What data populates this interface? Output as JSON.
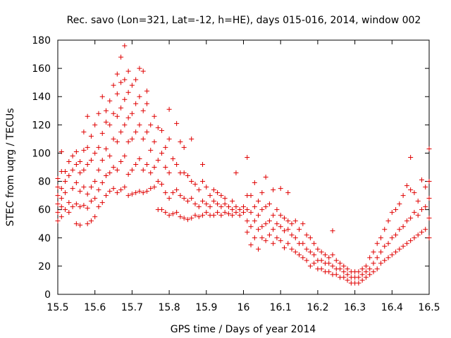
{
  "chart_data": {
    "type": "scatter",
    "title": "Rec. savo (Lon=321, Lat=-12, h=HE), days 015-016, 2014, window 002",
    "xlabel": "GPS time / Days of year 2014",
    "ylabel": "STEC from uqrg / TECUs",
    "xlim": [
      15.5,
      16.5
    ],
    "ylim": [
      0,
      180
    ],
    "xticks": [
      "15.5",
      "15.6",
      "15.7",
      "15.8",
      "15.9",
      "16",
      "16.1",
      "16.2",
      "16.3",
      "16.4",
      "16.5"
    ],
    "yticks": [
      "0",
      "20",
      "40",
      "60",
      "80",
      "100",
      "120",
      "140",
      "160",
      "180"
    ],
    "grid": false,
    "legend": "none",
    "marker": "plus",
    "color": "#e00000",
    "points": [
      [
        15.5,
        52
      ],
      [
        15.5,
        58
      ],
      [
        15.5,
        64
      ],
      [
        15.5,
        70
      ],
      [
        15.5,
        76
      ],
      [
        15.5,
        82
      ],
      [
        15.51,
        55
      ],
      [
        15.51,
        62
      ],
      [
        15.51,
        68
      ],
      [
        15.51,
        75
      ],
      [
        15.51,
        87
      ],
      [
        15.51,
        101
      ],
      [
        15.52,
        60
      ],
      [
        15.52,
        72
      ],
      [
        15.52,
        80
      ],
      [
        15.52,
        87
      ],
      [
        15.53,
        58
      ],
      [
        15.53,
        65
      ],
      [
        15.53,
        84
      ],
      [
        15.53,
        94
      ],
      [
        15.54,
        62
      ],
      [
        15.54,
        75
      ],
      [
        15.54,
        88
      ],
      [
        15.54,
        98
      ],
      [
        15.55,
        50
      ],
      [
        15.55,
        64
      ],
      [
        15.55,
        79
      ],
      [
        15.55,
        92
      ],
      [
        15.55,
        101
      ],
      [
        15.56,
        49
      ],
      [
        15.56,
        62
      ],
      [
        15.56,
        73
      ],
      [
        15.56,
        86
      ],
      [
        15.56,
        94
      ],
      [
        15.57,
        63
      ],
      [
        15.57,
        76
      ],
      [
        15.57,
        88
      ],
      [
        15.57,
        102
      ],
      [
        15.57,
        115
      ],
      [
        15.58,
        50
      ],
      [
        15.58,
        61
      ],
      [
        15.58,
        71
      ],
      [
        15.58,
        92
      ],
      [
        15.58,
        104
      ],
      [
        15.58,
        126
      ],
      [
        15.59,
        52
      ],
      [
        15.59,
        66
      ],
      [
        15.59,
        76
      ],
      [
        15.59,
        95
      ],
      [
        15.59,
        112
      ],
      [
        15.6,
        55
      ],
      [
        15.6,
        68
      ],
      [
        15.6,
        80
      ],
      [
        15.6,
        100
      ],
      [
        15.6,
        120
      ],
      [
        15.61,
        62
      ],
      [
        15.61,
        74
      ],
      [
        15.61,
        88
      ],
      [
        15.61,
        104
      ],
      [
        15.61,
        128
      ],
      [
        15.62,
        65
      ],
      [
        15.62,
        79
      ],
      [
        15.62,
        95
      ],
      [
        15.62,
        114
      ],
      [
        15.62,
        140
      ],
      [
        15.63,
        70
      ],
      [
        15.63,
        84
      ],
      [
        15.63,
        103
      ],
      [
        15.63,
        122
      ],
      [
        15.63,
        130
      ],
      [
        15.64,
        73
      ],
      [
        15.64,
        86
      ],
      [
        15.64,
        98
      ],
      [
        15.64,
        120
      ],
      [
        15.64,
        137
      ],
      [
        15.65,
        75
      ],
      [
        15.65,
        90
      ],
      [
        15.65,
        110
      ],
      [
        15.65,
        128
      ],
      [
        15.65,
        148
      ],
      [
        15.66,
        72
      ],
      [
        15.66,
        88
      ],
      [
        15.66,
        108
      ],
      [
        15.66,
        126
      ],
      [
        15.66,
        142
      ],
      [
        15.66,
        156
      ],
      [
        15.67,
        74
      ],
      [
        15.67,
        94
      ],
      [
        15.67,
        115
      ],
      [
        15.67,
        132
      ],
      [
        15.67,
        150
      ],
      [
        15.67,
        168
      ],
      [
        15.68,
        76
      ],
      [
        15.68,
        98
      ],
      [
        15.68,
        120
      ],
      [
        15.68,
        138
      ],
      [
        15.68,
        152
      ],
      [
        15.68,
        176
      ],
      [
        15.69,
        70
      ],
      [
        15.69,
        85
      ],
      [
        15.69,
        108
      ],
      [
        15.69,
        125
      ],
      [
        15.69,
        143
      ],
      [
        15.69,
        158
      ],
      [
        15.7,
        71
      ],
      [
        15.7,
        88
      ],
      [
        15.7,
        110
      ],
      [
        15.7,
        128
      ],
      [
        15.7,
        148
      ],
      [
        15.71,
        72
      ],
      [
        15.71,
        92
      ],
      [
        15.71,
        115
      ],
      [
        15.71,
        135
      ],
      [
        15.71,
        152
      ],
      [
        15.72,
        73
      ],
      [
        15.72,
        96
      ],
      [
        15.72,
        120
      ],
      [
        15.72,
        140
      ],
      [
        15.72,
        160
      ],
      [
        15.73,
        72
      ],
      [
        15.73,
        88
      ],
      [
        15.73,
        110
      ],
      [
        15.73,
        130
      ],
      [
        15.73,
        158
      ],
      [
        15.74,
        73
      ],
      [
        15.74,
        92
      ],
      [
        15.74,
        115
      ],
      [
        15.74,
        135
      ],
      [
        15.74,
        144
      ],
      [
        15.75,
        75
      ],
      [
        15.75,
        86
      ],
      [
        15.75,
        102
      ],
      [
        15.75,
        120
      ],
      [
        15.76,
        76
      ],
      [
        15.76,
        90
      ],
      [
        15.76,
        108
      ],
      [
        15.76,
        126
      ],
      [
        15.77,
        60
      ],
      [
        15.77,
        80
      ],
      [
        15.77,
        95
      ],
      [
        15.77,
        118
      ],
      [
        15.78,
        60
      ],
      [
        15.78,
        78
      ],
      [
        15.78,
        100
      ],
      [
        15.78,
        116
      ],
      [
        15.79,
        58
      ],
      [
        15.79,
        72
      ],
      [
        15.79,
        90
      ],
      [
        15.79,
        104
      ],
      [
        15.8,
        56
      ],
      [
        15.8,
        68
      ],
      [
        15.8,
        86
      ],
      [
        15.8,
        110
      ],
      [
        15.8,
        131
      ],
      [
        15.81,
        57
      ],
      [
        15.81,
        72
      ],
      [
        15.81,
        96
      ],
      [
        15.82,
        58
      ],
      [
        15.82,
        74
      ],
      [
        15.82,
        92
      ],
      [
        15.82,
        121
      ],
      [
        15.83,
        55
      ],
      [
        15.83,
        70
      ],
      [
        15.83,
        86
      ],
      [
        15.83,
        108
      ],
      [
        15.84,
        54
      ],
      [
        15.84,
        68
      ],
      [
        15.84,
        86
      ],
      [
        15.84,
        104
      ],
      [
        15.85,
        53
      ],
      [
        15.85,
        66
      ],
      [
        15.85,
        84
      ],
      [
        15.86,
        54
      ],
      [
        15.86,
        68
      ],
      [
        15.86,
        80
      ],
      [
        15.86,
        110
      ],
      [
        15.87,
        56
      ],
      [
        15.87,
        64
      ],
      [
        15.87,
        78
      ],
      [
        15.88,
        55
      ],
      [
        15.88,
        62
      ],
      [
        15.88,
        74
      ],
      [
        15.89,
        56
      ],
      [
        15.89,
        66
      ],
      [
        15.89,
        80
      ],
      [
        15.89,
        92
      ],
      [
        15.9,
        58
      ],
      [
        15.9,
        64
      ],
      [
        15.9,
        76
      ],
      [
        15.91,
        56
      ],
      [
        15.91,
        62
      ],
      [
        15.91,
        70
      ],
      [
        15.92,
        56
      ],
      [
        15.92,
        66
      ],
      [
        15.92,
        74
      ],
      [
        15.93,
        58
      ],
      [
        15.93,
        64
      ],
      [
        15.93,
        72
      ],
      [
        15.94,
        56
      ],
      [
        15.94,
        62
      ],
      [
        15.94,
        70
      ],
      [
        15.95,
        58
      ],
      [
        15.95,
        64
      ],
      [
        15.95,
        68
      ],
      [
        15.96,
        57
      ],
      [
        15.96,
        62
      ],
      [
        15.97,
        56
      ],
      [
        15.97,
        60
      ],
      [
        15.97,
        66
      ],
      [
        15.98,
        58
      ],
      [
        15.98,
        62
      ],
      [
        15.98,
        86
      ],
      [
        15.99,
        56
      ],
      [
        15.99,
        60
      ],
      [
        16.0,
        58
      ],
      [
        16.0,
        62
      ],
      [
        16.01,
        44
      ],
      [
        16.01,
        52
      ],
      [
        16.01,
        60
      ],
      [
        16.01,
        70
      ],
      [
        16.01,
        97
      ],
      [
        16.02,
        35
      ],
      [
        16.02,
        48
      ],
      [
        16.02,
        58
      ],
      [
        16.02,
        70
      ],
      [
        16.03,
        40
      ],
      [
        16.03,
        52
      ],
      [
        16.03,
        62
      ],
      [
        16.03,
        79
      ],
      [
        16.04,
        32
      ],
      [
        16.04,
        46
      ],
      [
        16.04,
        56
      ],
      [
        16.04,
        66
      ],
      [
        16.05,
        40
      ],
      [
        16.05,
        48
      ],
      [
        16.05,
        60
      ],
      [
        16.05,
        72
      ],
      [
        16.06,
        38
      ],
      [
        16.06,
        50
      ],
      [
        16.06,
        62
      ],
      [
        16.06,
        83
      ],
      [
        16.07,
        42
      ],
      [
        16.07,
        52
      ],
      [
        16.07,
        64
      ],
      [
        16.08,
        36
      ],
      [
        16.08,
        46
      ],
      [
        16.08,
        56
      ],
      [
        16.08,
        74
      ],
      [
        16.09,
        40
      ],
      [
        16.09,
        50
      ],
      [
        16.09,
        60
      ],
      [
        16.1,
        38
      ],
      [
        16.1,
        48
      ],
      [
        16.1,
        56
      ],
      [
        16.1,
        75
      ],
      [
        16.11,
        33
      ],
      [
        16.11,
        45
      ],
      [
        16.11,
        54
      ],
      [
        16.12,
        36
      ],
      [
        16.12,
        46
      ],
      [
        16.12,
        52
      ],
      [
        16.12,
        72
      ],
      [
        16.13,
        32
      ],
      [
        16.13,
        42
      ],
      [
        16.13,
        50
      ],
      [
        16.14,
        30
      ],
      [
        16.14,
        40
      ],
      [
        16.14,
        52
      ],
      [
        16.15,
        28
      ],
      [
        16.15,
        36
      ],
      [
        16.15,
        46
      ],
      [
        16.16,
        26
      ],
      [
        16.16,
        36
      ],
      [
        16.16,
        50
      ],
      [
        16.17,
        24
      ],
      [
        16.17,
        32
      ],
      [
        16.17,
        42
      ],
      [
        16.18,
        20
      ],
      [
        16.18,
        30
      ],
      [
        16.18,
        40
      ],
      [
        16.19,
        22
      ],
      [
        16.19,
        28
      ],
      [
        16.19,
        36
      ],
      [
        16.2,
        18
      ],
      [
        16.2,
        24
      ],
      [
        16.2,
        32
      ],
      [
        16.21,
        18
      ],
      [
        16.21,
        24
      ],
      [
        16.21,
        30
      ],
      [
        16.22,
        16
      ],
      [
        16.22,
        22
      ],
      [
        16.22,
        28
      ],
      [
        16.23,
        16
      ],
      [
        16.23,
        22
      ],
      [
        16.23,
        26
      ],
      [
        16.24,
        14
      ],
      [
        16.24,
        20
      ],
      [
        16.24,
        28
      ],
      [
        16.24,
        45
      ],
      [
        16.25,
        14
      ],
      [
        16.25,
        18
      ],
      [
        16.25,
        24
      ],
      [
        16.26,
        12
      ],
      [
        16.26,
        18
      ],
      [
        16.26,
        22
      ],
      [
        16.27,
        12
      ],
      [
        16.27,
        16
      ],
      [
        16.27,
        20
      ],
      [
        16.28,
        10
      ],
      [
        16.28,
        14
      ],
      [
        16.28,
        18
      ],
      [
        16.29,
        8
      ],
      [
        16.29,
        12
      ],
      [
        16.29,
        16
      ],
      [
        16.3,
        8
      ],
      [
        16.3,
        12
      ],
      [
        16.3,
        16
      ],
      [
        16.31,
        8
      ],
      [
        16.31,
        12
      ],
      [
        16.31,
        16
      ],
      [
        16.32,
        10
      ],
      [
        16.32,
        14
      ],
      [
        16.32,
        18
      ],
      [
        16.33,
        12
      ],
      [
        16.33,
        16
      ],
      [
        16.33,
        20
      ],
      [
        16.34,
        14
      ],
      [
        16.34,
        18
      ],
      [
        16.34,
        26
      ],
      [
        16.35,
        16
      ],
      [
        16.35,
        22
      ],
      [
        16.35,
        30
      ],
      [
        16.36,
        18
      ],
      [
        16.36,
        26
      ],
      [
        16.36,
        36
      ],
      [
        16.37,
        22
      ],
      [
        16.37,
        30
      ],
      [
        16.37,
        40
      ],
      [
        16.38,
        24
      ],
      [
        16.38,
        34
      ],
      [
        16.38,
        46
      ],
      [
        16.39,
        26
      ],
      [
        16.39,
        36
      ],
      [
        16.39,
        52
      ],
      [
        16.4,
        28
      ],
      [
        16.4,
        40
      ],
      [
        16.4,
        58
      ],
      [
        16.41,
        30
      ],
      [
        16.41,
        42
      ],
      [
        16.41,
        60
      ],
      [
        16.42,
        32
      ],
      [
        16.42,
        46
      ],
      [
        16.42,
        64
      ],
      [
        16.43,
        34
      ],
      [
        16.43,
        48
      ],
      [
        16.43,
        70
      ],
      [
        16.44,
        36
      ],
      [
        16.44,
        52
      ],
      [
        16.44,
        77
      ],
      [
        16.45,
        38
      ],
      [
        16.45,
        54
      ],
      [
        16.45,
        74
      ],
      [
        16.45,
        97
      ],
      [
        16.46,
        40
      ],
      [
        16.46,
        58
      ],
      [
        16.46,
        72
      ],
      [
        16.47,
        42
      ],
      [
        16.47,
        56
      ],
      [
        16.47,
        66
      ],
      [
        16.48,
        44
      ],
      [
        16.48,
        60
      ],
      [
        16.48,
        81
      ],
      [
        16.49,
        46
      ],
      [
        16.49,
        62
      ],
      [
        16.49,
        76
      ],
      [
        16.5,
        40
      ],
      [
        16.5,
        54
      ],
      [
        16.5,
        68
      ],
      [
        16.5,
        80
      ],
      [
        16.5,
        103
      ]
    ]
  }
}
